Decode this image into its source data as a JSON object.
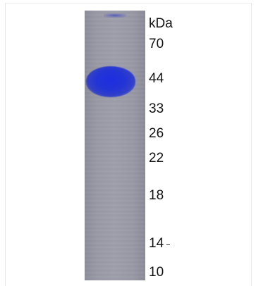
{
  "unit_label": "kDa",
  "markers": [
    {
      "label": "70"
    },
    {
      "label": "44"
    },
    {
      "label": "33"
    },
    {
      "label": "26"
    },
    {
      "label": "22"
    },
    {
      "label": "18"
    },
    {
      "label": "14"
    },
    {
      "label": "10"
    }
  ],
  "colors": {
    "band": "#2334d6",
    "gel": "#9b9ba8",
    "background": "#ffffff"
  }
}
